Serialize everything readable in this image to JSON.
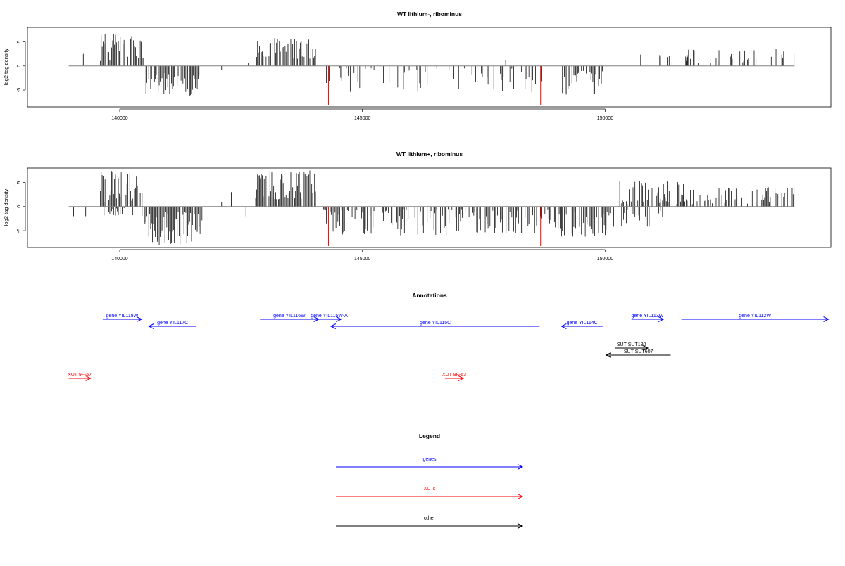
{
  "chart_data": [
    {
      "type": "bar",
      "title": "WT lithium-, ribominus",
      "ylabel": "log2 tag density",
      "xlim": [
        138100,
        154650
      ],
      "ylim": [
        -8.5,
        8
      ],
      "xticks": [
        140000,
        145000,
        150000
      ],
      "xtick_labels": [
        "140000",
        "145000",
        "150000"
      ],
      "yticks": [
        -5,
        0,
        5
      ],
      "ytick_labels": [
        "-5",
        "0",
        "5"
      ],
      "baseline_range": [
        138950,
        153900
      ],
      "marker_positions": [
        144300,
        148670
      ],
      "density_blocks": [
        {
          "range": [
            139600,
            140500
          ],
          "sign": 1,
          "max": 7.0,
          "min": 1.0,
          "density": 0.7
        },
        {
          "range": [
            140500,
            141700
          ],
          "sign": -1,
          "max": 6.5,
          "min": 1.5,
          "density": 0.65
        },
        {
          "range": [
            142800,
            144050
          ],
          "sign": 1,
          "max": 5.8,
          "min": 1.5,
          "density": 0.75
        },
        {
          "range": [
            144200,
            148700
          ],
          "sign": -1,
          "max": 5.5,
          "min": 0.3,
          "density": 0.28
        },
        {
          "range": [
            149100,
            150000
          ],
          "sign": -1,
          "max": 6.0,
          "min": 1.0,
          "density": 0.7
        },
        {
          "range": [
            150300,
            151700
          ],
          "sign": 1,
          "max": 2.5,
          "min": 0.5,
          "density": 0.08
        },
        {
          "range": [
            151600,
            153900
          ],
          "sign": 1,
          "max": 3.5,
          "min": 0.5,
          "density": 0.25
        }
      ],
      "isolated_bars": [
        [
          139250,
          2.5
        ],
        [
          142100,
          -0.8
        ],
        [
          142650,
          0.6
        ],
        [
          147950,
          1.2
        ]
      ]
    },
    {
      "type": "bar",
      "title": "WT lithium+, ribominus",
      "ylabel": "log2 tag density",
      "xlim": [
        138100,
        154650
      ],
      "ylim": [
        -8.5,
        8
      ],
      "xticks": [
        140000,
        145000,
        150000
      ],
      "xtick_labels": [
        "140000",
        "145000",
        "150000"
      ],
      "yticks": [
        -5,
        0,
        5
      ],
      "ytick_labels": [
        "-5",
        "0",
        "5"
      ],
      "baseline_range": [
        138950,
        153900
      ],
      "marker_positions": [
        144300,
        148670
      ],
      "density_blocks": [
        {
          "range": [
            139600,
            140500
          ],
          "sign": 1,
          "max": 7.8,
          "min": 0.5,
          "density": 0.8
        },
        {
          "range": [
            139600,
            140500
          ],
          "sign": -1,
          "max": 2.0,
          "min": 0.3,
          "density": 0.3
        },
        {
          "range": [
            140500,
            141700
          ],
          "sign": -1,
          "max": 8.0,
          "min": 1.0,
          "density": 0.85
        },
        {
          "range": [
            142800,
            144050
          ],
          "sign": 1,
          "max": 7.5,
          "min": 1.5,
          "density": 0.9
        },
        {
          "range": [
            144200,
            148700
          ],
          "sign": -1,
          "max": 6.0,
          "min": 0.5,
          "density": 0.55
        },
        {
          "range": [
            148700,
            149100
          ],
          "sign": -1,
          "max": 5.0,
          "min": 0.5,
          "density": 0.5
        },
        {
          "range": [
            149100,
            150200
          ],
          "sign": -1,
          "max": 6.5,
          "min": 1.0,
          "density": 0.8
        },
        {
          "range": [
            150300,
            151700
          ],
          "sign": 1,
          "max": 5.5,
          "min": 0.5,
          "density": 0.55
        },
        {
          "range": [
            150300,
            151200
          ],
          "sign": -1,
          "max": 4.5,
          "min": 0.5,
          "density": 0.3
        },
        {
          "range": [
            151600,
            153900
          ],
          "sign": 1,
          "max": 4.0,
          "min": 0.5,
          "density": 0.45
        }
      ],
      "isolated_bars": [
        [
          139050,
          -2.0
        ],
        [
          139300,
          -2.0
        ],
        [
          142100,
          1.0
        ],
        [
          142300,
          3.0
        ],
        [
          142600,
          -2.0
        ]
      ]
    }
  ],
  "annotations": {
    "title": "Annotations",
    "genes": [
      {
        "label": "gene YIL118W",
        "start": 139650,
        "end": 140450,
        "dir": "right"
      },
      {
        "label": "gene YIL117C",
        "start": 140600,
        "end": 141580,
        "dir": "left"
      },
      {
        "label": "gene YIL116W",
        "start": 142890,
        "end": 144100,
        "dir": "right"
      },
      {
        "label": "gene YIL115W-A",
        "start": 144070,
        "end": 144560,
        "dir": "right"
      },
      {
        "label": "gene YIL115C",
        "start": 144350,
        "end": 148650,
        "dir": "left"
      },
      {
        "label": "gene YIL114C",
        "start": 149100,
        "end": 149950,
        "dir": "left"
      },
      {
        "label": "gene YIL113W",
        "start": 150540,
        "end": 151200,
        "dir": "right"
      },
      {
        "label": "gene YIL112W",
        "start": 151570,
        "end": 154600,
        "dir": "right"
      }
    ],
    "others": [
      {
        "label": "SUT SUT180",
        "start": 150200,
        "end": 150880,
        "dir": "right"
      },
      {
        "label": "SUT SUT607",
        "start": 150020,
        "end": 151350,
        "dir": "left"
      }
    ],
    "xuts": [
      {
        "label": "XUT 9F-57",
        "start": 138950,
        "end": 139400,
        "dir": "right"
      },
      {
        "label": "XUT 9F-63",
        "start": 146700,
        "end": 147080,
        "dir": "right"
      }
    ]
  },
  "legend": {
    "title": "Legend",
    "items": [
      {
        "label": "genes",
        "color": "#0000ff"
      },
      {
        "label": "XUTs",
        "color": "#ff0000"
      },
      {
        "label": "other",
        "color": "#000000"
      }
    ]
  },
  "colors": {
    "gene": "#0000ff",
    "xut": "#ff0000",
    "other": "#000000",
    "marker": "#ff0000",
    "bar": "#000000",
    "baseline": "#808080"
  }
}
